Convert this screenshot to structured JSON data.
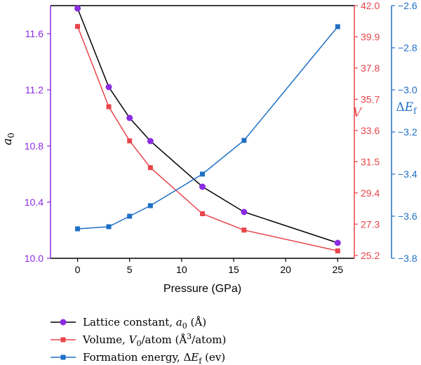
{
  "chart_data": {
    "type": "line",
    "xlabel": "Pressure (GPa)",
    "x_ticks": [
      "0",
      "5",
      "10",
      "15",
      "20",
      "25"
    ],
    "xlim": [
      -2.6,
      26.6
    ],
    "axes": {
      "left": {
        "label_var": "a",
        "label_sub": "0",
        "color": "#8b2be2",
        "lim": [
          10.0,
          11.8
        ],
        "ticks": [
          "10.0",
          "10.4",
          "10.8",
          "11.2",
          "11.6"
        ]
      },
      "right1": {
        "label_var": "V",
        "label_sub": "",
        "color": "#e8454a",
        "lim": [
          25.0,
          42.0
        ],
        "ticks": [
          "25.2",
          "27.3",
          "29.4",
          "31.5",
          "33.6",
          "35.7",
          "37.8",
          "39.9",
          "42.0"
        ]
      },
      "right2": {
        "label_prefix": "Δ",
        "label_var": "E",
        "label_sub": "f",
        "color": "#1f6fc5",
        "lim": [
          -3.8,
          -2.6
        ],
        "ticks": [
          "−3.8",
          "−3.6",
          "−3.4",
          "−3.2",
          "−3.0",
          "−2.8",
          "−2.6"
        ]
      }
    },
    "x": [
      0,
      3,
      5,
      7,
      12,
      16,
      25
    ],
    "series": [
      {
        "name": "Lattice constant",
        "axis": "left",
        "line_color": "#000000",
        "marker_color": "#8b2be2",
        "marker": "circle",
        "values": [
          11.78,
          11.22,
          11.0,
          10.835,
          10.51,
          10.33,
          10.11
        ]
      },
      {
        "name": "Volume",
        "axis": "right1",
        "line_color": "#e8454a",
        "marker_color": "#e8454a",
        "marker": "square",
        "values": [
          40.6,
          35.2,
          32.9,
          31.1,
          28.0,
          26.9,
          25.5
        ]
      },
      {
        "name": "Formation energy",
        "axis": "right2",
        "line_color": "#1f6fc5",
        "marker_color": "#1f6fc5",
        "marker": "square",
        "values": [
          -3.66,
          -3.65,
          -3.6,
          -3.55,
          -3.4,
          -3.24,
          -2.7
        ]
      }
    ],
    "legend": {
      "placement": "below",
      "entries": [
        {
          "text": "Lattice constant, ",
          "var": "a",
          "sub": "0",
          "sup": "",
          "tail": " (Å)"
        },
        {
          "text": "Volume, ",
          "var": "V",
          "sub": "0",
          "sup": "",
          "tail": "/atom (Å",
          "tail_sup": "3",
          "tail_end": "/atom)"
        },
        {
          "text": "Formation energy, Δ",
          "var": "E",
          "sub": "f",
          "sup": "",
          "tail": " (ev)"
        }
      ]
    },
    "grid": false
  }
}
